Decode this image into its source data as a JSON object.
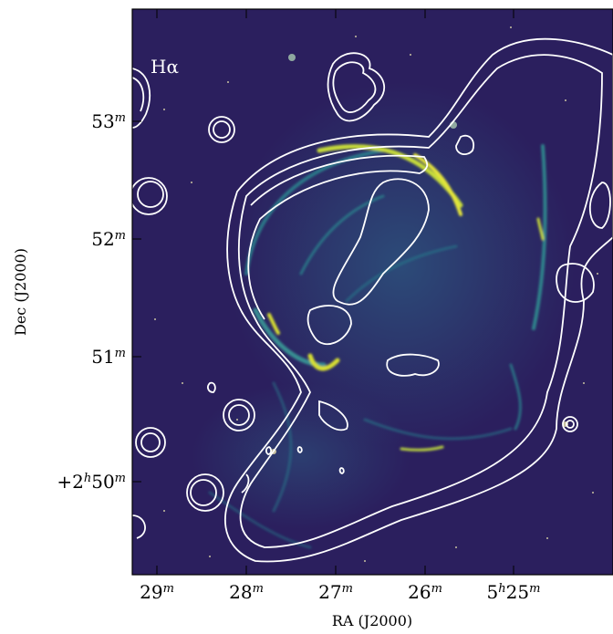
{
  "figure": {
    "band_label": "Hα",
    "colors": {
      "background": "#2b1f5e",
      "emission": "#1f8a8a",
      "bright": "#d8e030",
      "contour": "#ffffff",
      "axes": "#000000"
    }
  },
  "axes": {
    "xlabel": "RA (J2000)",
    "ylabel": "Dec (J2000)",
    "xticks": [
      "29m",
      "28m",
      "27m",
      "26m",
      "5h25m"
    ],
    "yticks": [
      "53m",
      "52m",
      "51m",
      "+2h50m"
    ]
  }
}
